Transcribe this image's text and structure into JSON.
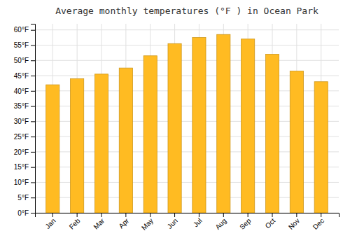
{
  "chart_data": {
    "type": "bar",
    "title": "Average monthly temperatures (°F ) in Ocean Park",
    "categories": [
      "Jan",
      "Feb",
      "Mar",
      "Apr",
      "May",
      "Jun",
      "Jul",
      "Aug",
      "Sep",
      "Oct",
      "Nov",
      "Dec"
    ],
    "values": [
      42,
      44,
      45.5,
      47.5,
      51.5,
      55.5,
      57.5,
      58.5,
      57,
      52,
      46.5,
      43
    ],
    "color": "#FFBB22",
    "ylim": [
      0,
      62
    ],
    "yticks": [
      {
        "value": 0,
        "label": "0°F"
      },
      {
        "value": 5,
        "label": "5°F"
      },
      {
        "value": 10,
        "label": "10°F"
      },
      {
        "value": 15,
        "label": "15°F"
      },
      {
        "value": 20,
        "label": "20°F"
      },
      {
        "value": 25,
        "label": "25°F"
      },
      {
        "value": 30,
        "label": "30°F"
      },
      {
        "value": 35,
        "label": "35°F"
      },
      {
        "value": 40,
        "label": "40°F"
      },
      {
        "value": 45,
        "label": "45°F"
      },
      {
        "value": 50,
        "label": "50°F"
      },
      {
        "value": 55,
        "label": "55°F"
      },
      {
        "value": 60,
        "label": "60°F"
      }
    ],
    "grid": true
  }
}
